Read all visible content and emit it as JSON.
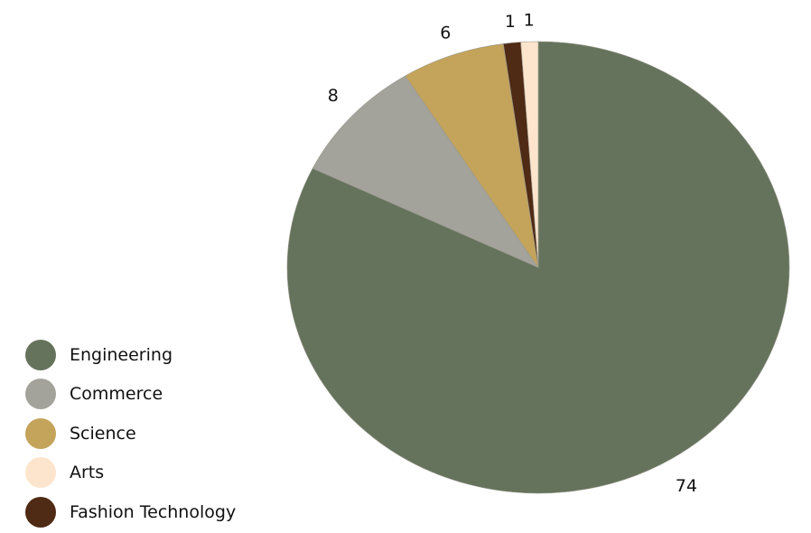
{
  "chart_data": {
    "type": "pie",
    "title": "",
    "categories": [
      "Engineering",
      "Commerce",
      "Science",
      "Arts",
      "Fashion Technology"
    ],
    "values": [
      74,
      8,
      6,
      1,
      1
    ],
    "slice_order_clockwise_from_top": [
      "Engineering",
      "Commerce",
      "Science",
      "Fashion Technology",
      "Arts"
    ],
    "data_labels": [
      "74",
      "8",
      "6",
      "1",
      "1"
    ],
    "colors": {
      "Engineering": "#66735c",
      "Commerce": "#a3a39b",
      "Science": "#c4a35a",
      "Arts": "#fde4cc",
      "Fashion Technology": "#4f2a14"
    },
    "legend": {
      "placement": "bottom-left",
      "entries": [
        "Engineering",
        "Commerce",
        "Science",
        "Arts",
        "Fashion Technology"
      ]
    }
  }
}
